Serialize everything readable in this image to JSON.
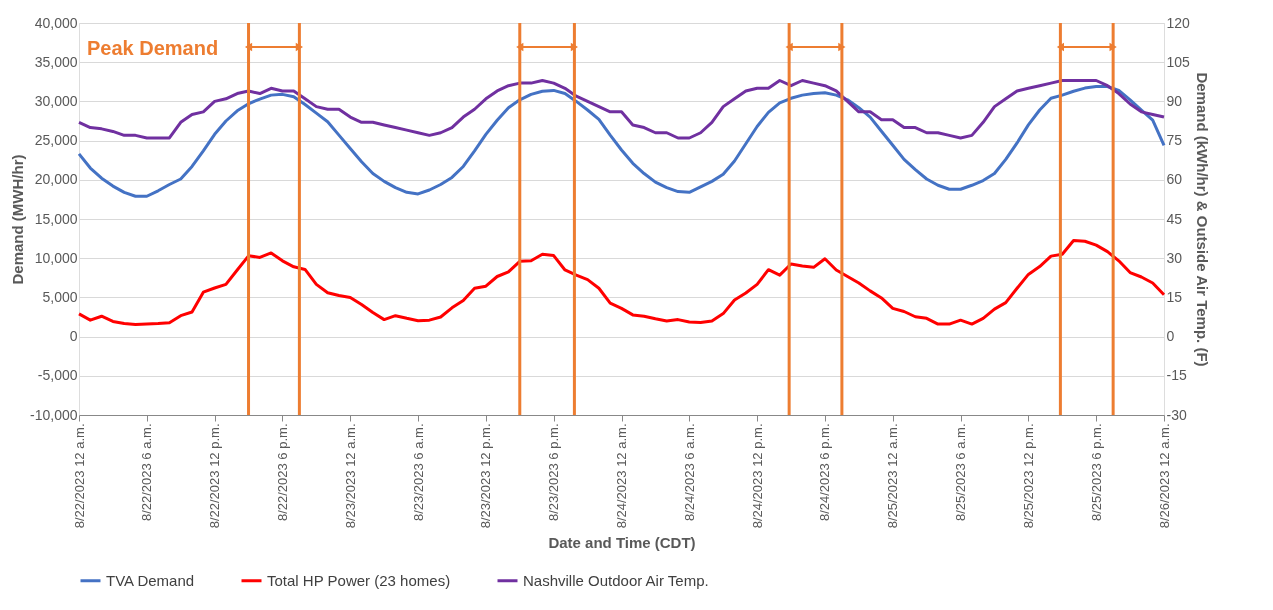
{
  "chart_data": {
    "type": "line",
    "xlabel": "Date and Time (CDT)",
    "ylabel": "Demand (MWH/hr)",
    "y2label": "Demand (kWh/hr) & Outside Air Temp. (F)",
    "annotations": [
      "Peak Demand"
    ],
    "x": [
      "2023-08-22T00:00",
      "2023-08-22T01:00",
      "2023-08-22T02:00",
      "2023-08-22T03:00",
      "2023-08-22T04:00",
      "2023-08-22T05:00",
      "2023-08-22T06:00",
      "2023-08-22T07:00",
      "2023-08-22T08:00",
      "2023-08-22T09:00",
      "2023-08-22T10:00",
      "2023-08-22T11:00",
      "2023-08-22T12:00",
      "2023-08-22T13:00",
      "2023-08-22T14:00",
      "2023-08-22T15:00",
      "2023-08-22T16:00",
      "2023-08-22T17:00",
      "2023-08-22T18:00",
      "2023-08-22T19:00",
      "2023-08-22T20:00",
      "2023-08-22T21:00",
      "2023-08-22T22:00",
      "2023-08-22T23:00",
      "2023-08-23T00:00",
      "2023-08-23T01:00",
      "2023-08-23T02:00",
      "2023-08-23T03:00",
      "2023-08-23T04:00",
      "2023-08-23T05:00",
      "2023-08-23T06:00",
      "2023-08-23T07:00",
      "2023-08-23T08:00",
      "2023-08-23T09:00",
      "2023-08-23T10:00",
      "2023-08-23T11:00",
      "2023-08-23T12:00",
      "2023-08-23T13:00",
      "2023-08-23T14:00",
      "2023-08-23T15:00",
      "2023-08-23T16:00",
      "2023-08-23T17:00",
      "2023-08-23T18:00",
      "2023-08-23T19:00",
      "2023-08-23T20:00",
      "2023-08-23T21:00",
      "2023-08-23T22:00",
      "2023-08-23T23:00",
      "2023-08-24T00:00",
      "2023-08-24T01:00",
      "2023-08-24T02:00",
      "2023-08-24T03:00",
      "2023-08-24T04:00",
      "2023-08-24T05:00",
      "2023-08-24T06:00",
      "2023-08-24T07:00",
      "2023-08-24T08:00",
      "2023-08-24T09:00",
      "2023-08-24T10:00",
      "2023-08-24T11:00",
      "2023-08-24T12:00",
      "2023-08-24T13:00",
      "2023-08-24T14:00",
      "2023-08-24T15:00",
      "2023-08-24T16:00",
      "2023-08-24T17:00",
      "2023-08-24T18:00",
      "2023-08-24T19:00",
      "2023-08-24T20:00",
      "2023-08-24T21:00",
      "2023-08-24T22:00",
      "2023-08-24T23:00",
      "2023-08-25T00:00",
      "2023-08-25T01:00",
      "2023-08-25T02:00",
      "2023-08-25T03:00",
      "2023-08-25T04:00",
      "2023-08-25T05:00",
      "2023-08-25T06:00",
      "2023-08-25T07:00",
      "2023-08-25T08:00",
      "2023-08-25T09:00",
      "2023-08-25T10:00",
      "2023-08-25T11:00",
      "2023-08-25T12:00",
      "2023-08-25T13:00",
      "2023-08-25T14:00",
      "2023-08-25T15:00",
      "2023-08-25T16:00",
      "2023-08-25T17:00",
      "2023-08-25T18:00",
      "2023-08-25T19:00",
      "2023-08-25T20:00",
      "2023-08-25T21:00",
      "2023-08-25T22:00",
      "2023-08-25T23:00",
      "2023-08-26T00:00"
    ],
    "xlim": [
      "2023-08-22T00:00",
      "2023-08-26T00:00"
    ],
    "xticks": [
      {
        "value": "2023-08-22T00:00",
        "label": "8/22/2023 12 a.m."
      },
      {
        "value": "2023-08-22T06:00",
        "label": "8/22/2023   6 a.m."
      },
      {
        "value": "2023-08-22T12:00",
        "label": "8/22/2023 12 p.m."
      },
      {
        "value": "2023-08-22T18:00",
        "label": "8/22/2023   6 p.m."
      },
      {
        "value": "2023-08-23T00:00",
        "label": "8/23/2023 12 a.m."
      },
      {
        "value": "2023-08-23T06:00",
        "label": "8/23/2023   6 a.m."
      },
      {
        "value": "2023-08-23T12:00",
        "label": "8/23/2023 12 p.m."
      },
      {
        "value": "2023-08-23T18:00",
        "label": "8/23/2023   6 p.m."
      },
      {
        "value": "2023-08-24T00:00",
        "label": "8/24/2023 12 a.m."
      },
      {
        "value": "2023-08-24T06:00",
        "label": "8/24/2023   6 a.m."
      },
      {
        "value": "2023-08-24T12:00",
        "label": "8/24/2023 12 p.m."
      },
      {
        "value": "2023-08-24T18:00",
        "label": "8/24/2023   6 p.m."
      },
      {
        "value": "2023-08-25T00:00",
        "label": "8/25/2023 12 a.m."
      },
      {
        "value": "2023-08-25T06:00",
        "label": "8/25/2023   6 a.m."
      },
      {
        "value": "2023-08-25T12:00",
        "label": "8/25/2023 12 p.m."
      },
      {
        "value": "2023-08-25T18:00",
        "label": "8/25/2023   6 p.m."
      },
      {
        "value": "2023-08-26T00:00",
        "label": "8/26/2023 12 a.m."
      }
    ],
    "ylim": [
      -10000,
      40000
    ],
    "yticks": [
      {
        "value": -10000,
        "label": "-10,000"
      },
      {
        "value": -5000,
        "label": "-5,000"
      },
      0,
      {
        "value": 5000,
        "label": "5,000"
      },
      {
        "value": 10000,
        "label": "10,000"
      },
      {
        "value": 15000,
        "label": "15,000"
      },
      {
        "value": 20000,
        "label": "20,000"
      },
      {
        "value": 25000,
        "label": "25,000"
      },
      {
        "value": 30000,
        "label": "30,000"
      },
      {
        "value": 35000,
        "label": "35,000"
      },
      {
        "value": 40000,
        "label": "40,000"
      }
    ],
    "y2lim": [
      -30,
      120
    ],
    "y2ticks": [
      -30,
      -15,
      0,
      15,
      30,
      45,
      60,
      75,
      90,
      105,
      120
    ],
    "grid": "y",
    "legend": "bottom",
    "marker": "none",
    "line_style": "solid",
    "series": [
      {
        "name": "TVA Demand",
        "color": "#4472c4",
        "values": [
          23300,
          21500,
          20200,
          19200,
          18400,
          17900,
          17900,
          18600,
          19400,
          20100,
          21700,
          23700,
          25800,
          27500,
          28800,
          29700,
          30300,
          30800,
          30900,
          30600,
          29600,
          28500,
          27400,
          25700,
          24000,
          22300,
          20800,
          19800,
          19000,
          18400,
          18200,
          18700,
          19400,
          20300,
          21700,
          23700,
          25800,
          27600,
          29200,
          30200,
          30900,
          31300,
          31400,
          31000,
          30000,
          28900,
          27700,
          25700,
          23800,
          22100,
          20800,
          19700,
          19000,
          18500,
          18400,
          19100,
          19800,
          20700,
          22400,
          24600,
          26800,
          28600,
          29800,
          30400,
          30800,
          31000,
          31100,
          30800,
          30200,
          29200,
          28000,
          26200,
          24400,
          22600,
          21300,
          20100,
          19300,
          18800,
          18800,
          19300,
          19900,
          20800,
          22600,
          24700,
          27000,
          28900,
          30400,
          30800,
          31300,
          31700,
          31900,
          31900,
          31400,
          30200,
          28900,
          27600,
          24400
        ]
      },
      {
        "name": "Total HP Power (23 homes)",
        "color": "#ff0000",
        "axis": "y2",
        "values": [
          8.7,
          6.3,
          7.8,
          5.8,
          5.0,
          4.6,
          4.8,
          5.0,
          5.3,
          8.0,
          9.4,
          17.0,
          18.6,
          20.0,
          25.5,
          30.9,
          30.3,
          32.0,
          29.0,
          26.7,
          25.7,
          20.0,
          16.8,
          15.7,
          15.0,
          12.3,
          9.2,
          6.5,
          8.0,
          7.0,
          6.1,
          6.3,
          7.5,
          11.0,
          13.8,
          18.5,
          19.3,
          23.0,
          24.8,
          28.8,
          29.0,
          31.5,
          31.0,
          25.5,
          23.5,
          21.8,
          18.5,
          12.8,
          10.8,
          8.3,
          7.8,
          6.8,
          6.0,
          6.5,
          5.6,
          5.4,
          6.0,
          8.8,
          14.0,
          16.7,
          20.0,
          25.6,
          23.5,
          27.8,
          27.0,
          26.5,
          29.8,
          25.5,
          23.0,
          20.5,
          17.5,
          14.8,
          10.8,
          9.6,
          7.6,
          7.0,
          4.8,
          4.8,
          6.3,
          4.8,
          7.0,
          10.5,
          13.0,
          18.5,
          23.8,
          26.8,
          30.8,
          31.5,
          36.8,
          36.5,
          35.0,
          32.5,
          29.0,
          24.5,
          22.8,
          20.5,
          16.0
        ]
      },
      {
        "name": "Nashville Outdoor Air Temp.",
        "color": "#7030a0",
        "axis": "y2",
        "values": [
          82,
          80,
          79.5,
          78.5,
          77,
          77,
          76,
          76,
          76,
          82,
          85,
          86,
          90,
          91,
          93,
          94,
          93,
          95,
          94,
          94,
          91,
          88,
          87,
          87,
          84,
          82,
          82,
          81,
          80,
          79,
          78,
          77,
          78,
          80,
          84,
          87,
          91,
          94,
          96,
          97,
          97,
          98,
          97,
          95,
          92,
          90,
          88,
          86,
          86,
          81,
          80,
          78,
          78,
          76,
          76,
          78,
          82,
          88,
          91,
          94,
          95,
          95,
          98,
          96,
          98,
          97,
          96,
          94,
          90,
          86,
          86,
          83,
          83,
          80,
          80,
          78,
          78,
          77,
          76,
          77,
          82,
          88,
          91,
          94,
          95,
          96,
          97,
          98,
          98,
          98,
          98,
          96,
          93,
          89,
          86,
          85,
          84
        ]
      }
    ],
    "ref_lines": [
      {
        "axis": "x",
        "value": "2023-08-22T15:00",
        "label": null,
        "color": "#ed7d31"
      },
      {
        "axis": "x",
        "value": "2023-08-22T19:30",
        "label": null,
        "color": "#ed7d31"
      },
      {
        "axis": "x",
        "value": "2023-08-23T15:00",
        "label": null,
        "color": "#ed7d31"
      },
      {
        "axis": "x",
        "value": "2023-08-23T19:50",
        "label": null,
        "color": "#ed7d31"
      },
      {
        "axis": "x",
        "value": "2023-08-24T14:50",
        "label": null,
        "color": "#ed7d31"
      },
      {
        "axis": "x",
        "value": "2023-08-24T19:30",
        "label": null,
        "color": "#ed7d31"
      },
      {
        "axis": "x",
        "value": "2023-08-25T14:50",
        "label": null,
        "color": "#ed7d31"
      },
      {
        "axis": "x",
        "value": "2023-08-25T19:30",
        "label": null,
        "color": "#ed7d31"
      }
    ]
  }
}
